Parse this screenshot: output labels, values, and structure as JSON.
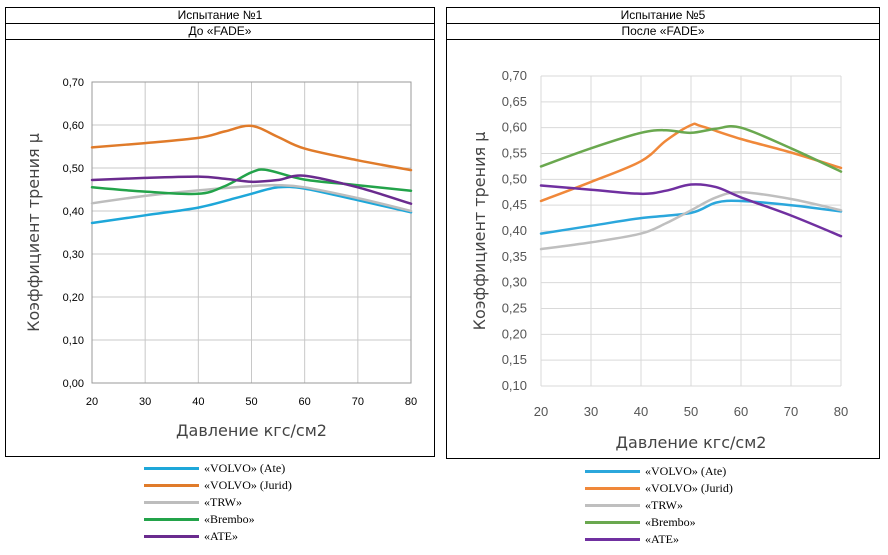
{
  "chart_data": [
    {
      "type": "line",
      "header_title": "Испытание №1",
      "header_subtitle": "До «FADE»",
      "xlabel": "Давление кгс/см2",
      "ylabel": "Коэффициент трения μ",
      "xlim": [
        20,
        80
      ],
      "ylim": [
        0,
        0.7
      ],
      "x_ticks": [
        20,
        30,
        40,
        50,
        60,
        70,
        80
      ],
      "x_tick_labels": [
        "20",
        "30",
        "40",
        "50",
        "60",
        "70",
        "80"
      ],
      "y_ticks": [
        0,
        0.1,
        0.2,
        0.3,
        0.4,
        0.5,
        0.6,
        0.7
      ],
      "y_tick_labels": [
        "0,00",
        "0,10",
        "0,20",
        "0,30",
        "0,40",
        "0,50",
        "0,60",
        "0,70"
      ],
      "grid": true,
      "series": [
        {
          "name": "«VOLVO» (Ate)",
          "color": "#1ea7d9",
          "x": [
            20,
            30,
            40,
            47,
            50,
            55,
            60,
            70,
            80
          ],
          "y": [
            0.372,
            0.39,
            0.408,
            0.43,
            0.44,
            0.455,
            0.452,
            0.425,
            0.397
          ]
        },
        {
          "name": "«VOLVO» (Jurid)",
          "color": "#e07b2a",
          "x": [
            20,
            30,
            40,
            45,
            50,
            55,
            60,
            70,
            80
          ],
          "y": [
            0.548,
            0.558,
            0.57,
            0.585,
            0.598,
            0.572,
            0.545,
            0.518,
            0.495
          ]
        },
        {
          "name": "«TRW»",
          "color": "#bdbdbd",
          "x": [
            20,
            30,
            40,
            50,
            55,
            60,
            70,
            80
          ],
          "y": [
            0.418,
            0.435,
            0.448,
            0.458,
            0.46,
            0.455,
            0.43,
            0.4
          ]
        },
        {
          "name": "«Brembo»",
          "color": "#23a34a",
          "x": [
            20,
            30,
            40,
            45,
            50,
            53,
            60,
            70,
            80
          ],
          "y": [
            0.455,
            0.445,
            0.44,
            0.458,
            0.49,
            0.495,
            0.473,
            0.46,
            0.447
          ]
        },
        {
          "name": "«ATE»",
          "color": "#6a2b8e",
          "x": [
            20,
            30,
            40,
            45,
            50,
            55,
            60,
            70,
            80
          ],
          "y": [
            0.472,
            0.477,
            0.48,
            0.475,
            0.468,
            0.472,
            0.482,
            0.455,
            0.417
          ]
        }
      ]
    },
    {
      "type": "line",
      "header_title": "Испытание №5",
      "header_subtitle": "После «FADE»",
      "xlabel": "Давление кгс/см2",
      "ylabel": "Коэффициент трения μ",
      "xlim": [
        20,
        80
      ],
      "ylim": [
        0.1,
        0.7
      ],
      "x_ticks": [
        20,
        30,
        40,
        50,
        60,
        70,
        80
      ],
      "x_tick_labels": [
        "20",
        "30",
        "40",
        "50",
        "60",
        "70",
        "80"
      ],
      "y_ticks": [
        0.1,
        0.15,
        0.2,
        0.25,
        0.3,
        0.35,
        0.4,
        0.45,
        0.5,
        0.55,
        0.6,
        0.65,
        0.7
      ],
      "y_tick_labels": [
        "0,10",
        "0,15",
        "0,20",
        "0,25",
        "0,30",
        "0,35",
        "0,40",
        "0,45",
        "0,50",
        "0,55",
        "0,60",
        "0,65",
        "0,70"
      ],
      "grid": true,
      "series": [
        {
          "name": "«VOLVO» (Ate)",
          "color": "#2ba7dc",
          "x": [
            20,
            30,
            40,
            50,
            55,
            60,
            70,
            80
          ],
          "y": [
            0.395,
            0.41,
            0.425,
            0.435,
            0.455,
            0.458,
            0.45,
            0.438
          ]
        },
        {
          "name": "«VOLVO» (Jurid)",
          "color": "#f0883a",
          "x": [
            20,
            30,
            40,
            45,
            50,
            52,
            60,
            70,
            80
          ],
          "y": [
            0.458,
            0.495,
            0.535,
            0.575,
            0.605,
            0.603,
            0.578,
            0.552,
            0.522
          ]
        },
        {
          "name": "«TRW»",
          "color": "#bfbfbf",
          "x": [
            20,
            30,
            40,
            45,
            50,
            55,
            60,
            70,
            80
          ],
          "y": [
            0.365,
            0.378,
            0.395,
            0.415,
            0.44,
            0.465,
            0.475,
            0.462,
            0.44
          ]
        },
        {
          "name": "«Brembo»",
          "color": "#6aa84f",
          "x": [
            20,
            30,
            40,
            45,
            50,
            55,
            60,
            70,
            80
          ],
          "y": [
            0.525,
            0.56,
            0.59,
            0.595,
            0.59,
            0.598,
            0.6,
            0.56,
            0.515
          ]
        },
        {
          "name": "«ATE»",
          "color": "#7030a0",
          "x": [
            20,
            30,
            40,
            45,
            50,
            55,
            60,
            70,
            80
          ],
          "y": [
            0.488,
            0.48,
            0.472,
            0.478,
            0.49,
            0.485,
            0.465,
            0.43,
            0.39
          ]
        }
      ]
    }
  ]
}
